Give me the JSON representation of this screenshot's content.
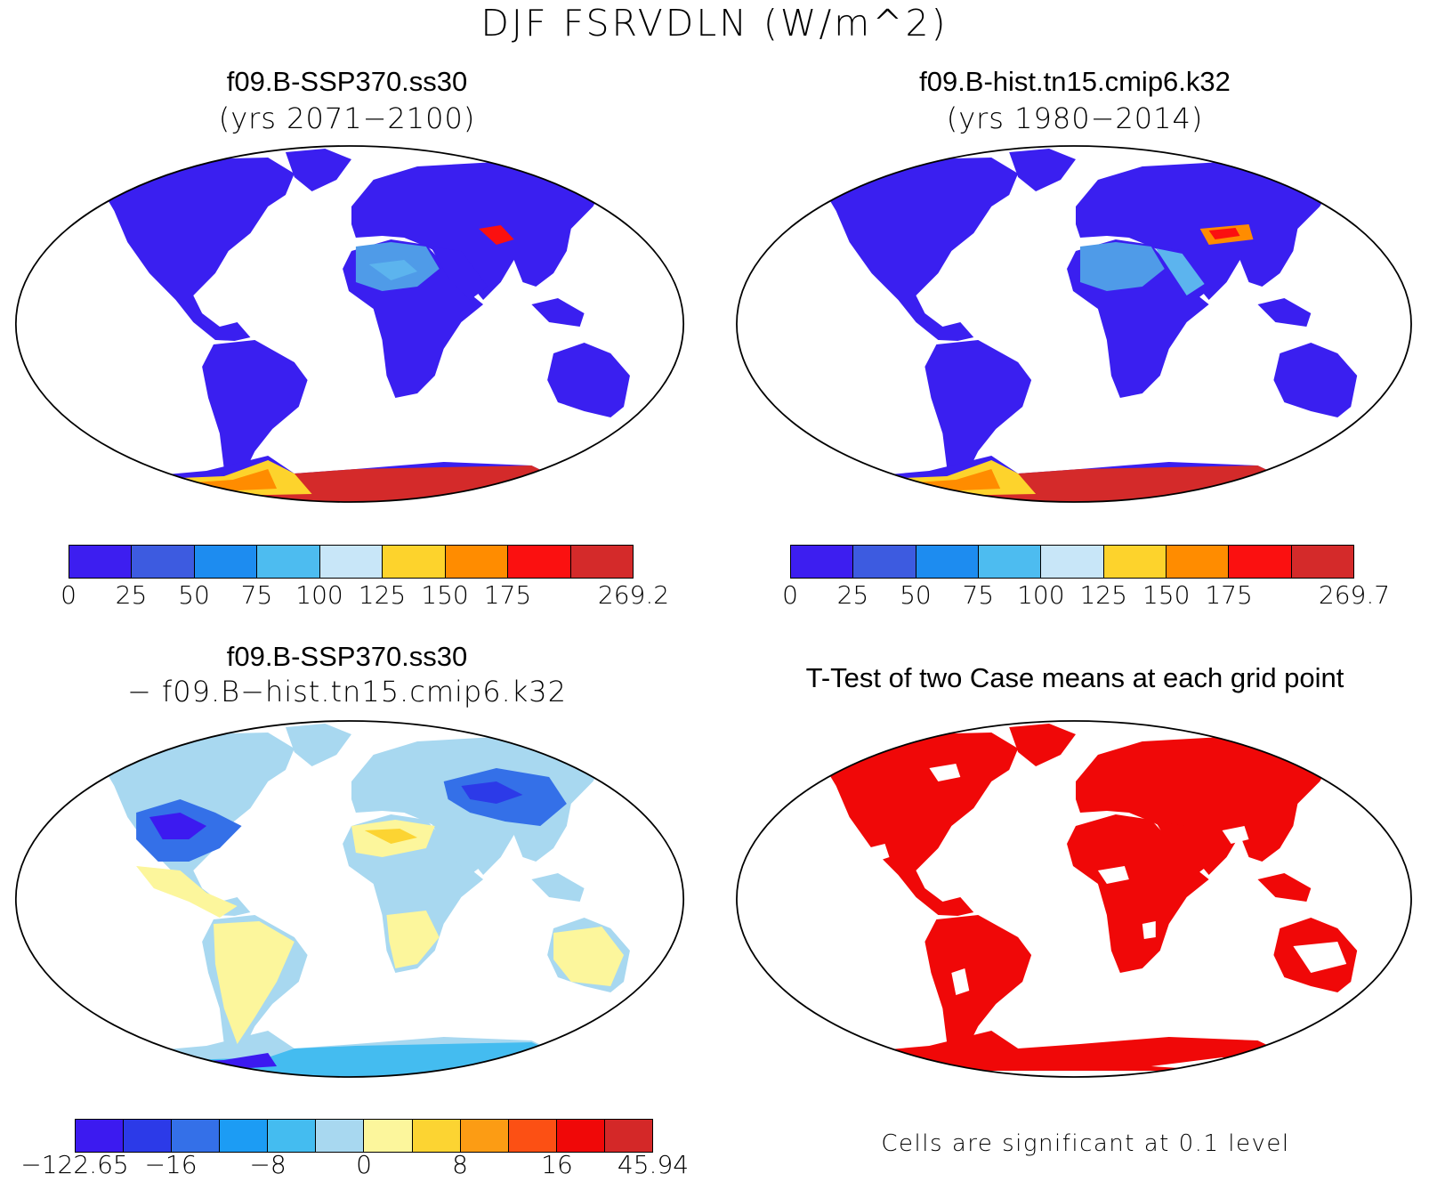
{
  "title": "DJF FSRVDLN (W/m^2)",
  "panels": [
    {
      "title": "f09.B-SSP370.ss30",
      "subtitle": "(yrs 2071−2100)",
      "legend": {
        "colors": [
          "#3d1ef0",
          "#3d5be0",
          "#1d8cf0",
          "#4dbcf0",
          "#c8e6f8",
          "#fdd32c",
          "#ff8c00",
          "#fb1010",
          "#d42a2a"
        ],
        "labels": [
          "0",
          "25",
          "50",
          "75",
          "100",
          "125",
          "150",
          "175",
          "269.2"
        ]
      }
    },
    {
      "title": "f09.B-hist.tn15.cmip6.k32",
      "subtitle": "(yrs 1980−2014)",
      "legend": {
        "colors": [
          "#3d1ef0",
          "#3d5be0",
          "#1d8cf0",
          "#4dbcf0",
          "#c8e6f8",
          "#fdd32c",
          "#ff8c00",
          "#fb1010",
          "#d42a2a"
        ],
        "labels": [
          "0",
          "25",
          "50",
          "75",
          "100",
          "125",
          "150",
          "175",
          "269.7"
        ]
      }
    },
    {
      "title": "f09.B-SSP370.ss30",
      "subtitle": "− f09.B−hist.tn15.cmip6.k32",
      "legend": {
        "colors": [
          "#3c1af0",
          "#2c3ae8",
          "#3470e8",
          "#1c9cf4",
          "#44bcf0",
          "#a8d8f0",
          "#fcf69c",
          "#fcd432",
          "#fc9c14",
          "#fc5014",
          "#f00808",
          "#d42828"
        ],
        "labels": [
          "−122.65",
          "−16",
          "−8",
          "0",
          "8",
          "16",
          "45.94"
        ]
      }
    },
    {
      "title": "T-Test of two Case means at each grid point",
      "footnote": "Cells are significant at 0.1 level"
    }
  ]
}
